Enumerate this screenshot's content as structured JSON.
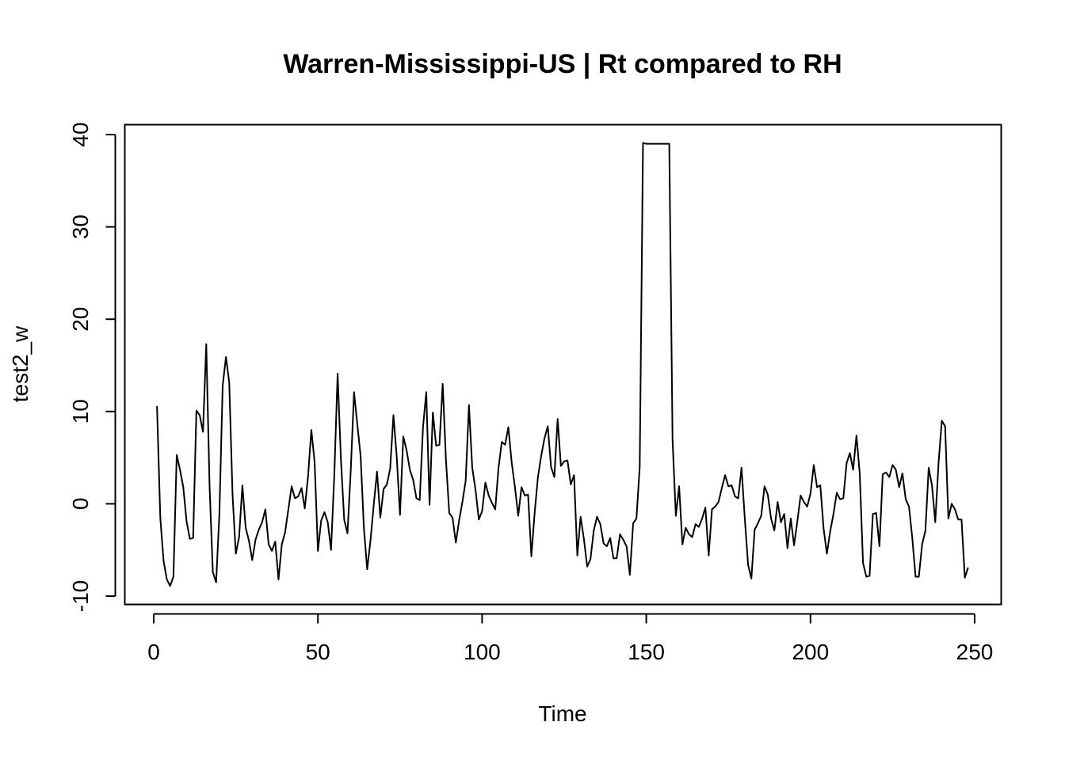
{
  "chart_data": {
    "type": "line",
    "title": "Warren-Mississippi-US | Rt compared to RH",
    "xlabel": "Time",
    "ylabel": "test2_w",
    "xlim": [
      0,
      250
    ],
    "ylim": [
      -10,
      40
    ],
    "x_ticks": [
      0,
      50,
      100,
      150,
      200,
      250
    ],
    "y_ticks": [
      -10,
      0,
      10,
      20,
      30,
      40
    ],
    "x_tick_labels": [
      "0",
      "50",
      "100",
      "150",
      "200",
      "250"
    ],
    "y_tick_labels": [
      "-10",
      "0",
      "10",
      "20",
      "30",
      "40"
    ],
    "grid": false,
    "line_color": "#000000",
    "series": [
      {
        "x_start": 1,
        "values": [
          10.6,
          -1.5,
          -6.2,
          -8.2,
          -8.9,
          -7.9,
          5.3,
          3.7,
          1.8,
          -1.9,
          -3.8,
          -3.7,
          10.1,
          9.6,
          7.8,
          17.3,
          2.0,
          -7.4,
          -8.5,
          -1.1,
          12.8,
          15.9,
          13.1,
          1.0,
          -5.4,
          -3.6,
          2.0,
          -2.6,
          -4.0,
          -6.1,
          -3.9,
          -2.8,
          -2.0,
          -0.6,
          -4.4,
          -5.1,
          -4.1,
          -8.2,
          -4.4,
          -3.1,
          -0.6,
          1.9,
          0.6,
          0.8,
          1.7,
          -0.5,
          3.0,
          8.0,
          4.5,
          -5.1,
          -1.8,
          -0.9,
          -2.0,
          -5.0,
          3.2,
          14.1,
          4.9,
          -1.7,
          -3.2,
          3.6,
          12.1,
          8.6,
          5.2,
          -2.6,
          -7.1,
          -4.0,
          -0.1,
          3.5,
          -1.5,
          1.6,
          2.1,
          3.8,
          9.6,
          5.1,
          -1.2,
          7.3,
          5.8,
          3.7,
          2.6,
          0.6,
          0.4,
          8.3,
          12.1,
          -0.1,
          9.9,
          6.3,
          6.4,
          13.0,
          4.7,
          -1.0,
          -1.5,
          -4.2,
          -1.8,
          0.2,
          2.5,
          10.7,
          3.9,
          1.5,
          -1.7,
          -0.8,
          2.3,
          0.9,
          0.1,
          -0.6,
          3.9,
          6.7,
          6.4,
          8.3,
          4.5,
          1.8,
          -1.3,
          1.8,
          0.9,
          1.0,
          -5.7,
          -1.0,
          2.9,
          5.2,
          7.1,
          8.4,
          4.0,
          2.9,
          9.2,
          4.1,
          4.6,
          4.7,
          2.1,
          3.1,
          -5.6,
          -1.4,
          -3.8,
          -6.8,
          -6.0,
          -2.9,
          -1.4,
          -2.2,
          -4.3,
          -4.6,
          -3.7,
          -5.9,
          -5.9,
          -3.3,
          -3.9,
          -4.6,
          -7.7,
          -2.1,
          -1.6,
          4.0,
          39.1,
          39.0,
          39.0,
          39.0,
          39.0,
          39.0,
          39.0,
          39.0,
          39.0,
          6.9,
          -1.3,
          1.9,
          -4.4,
          -2.6,
          -3.3,
          -3.6,
          -2.2,
          -2.5,
          -1.6,
          -0.4,
          -5.6,
          -0.6,
          -0.3,
          0.2,
          1.7,
          3.1,
          1.9,
          2.0,
          0.8,
          0.6,
          3.9,
          -1.6,
          -6.6,
          -8.1,
          -2.8,
          -2.1,
          -1.3,
          1.9,
          1.0,
          -1.6,
          -2.9,
          0.2,
          -2.0,
          -1.1,
          -4.8,
          -1.6,
          -4.5,
          -1.9,
          0.9,
          0.2,
          -0.3,
          1.1,
          4.2,
          1.8,
          2.0,
          -2.7,
          -5.4,
          -3.0,
          -1.1,
          1.2,
          0.5,
          0.6,
          4.4,
          5.5,
          3.7,
          7.4,
          3.3,
          -6.4,
          -7.9,
          -7.8,
          -1.1,
          -1.0,
          -4.6,
          3.2,
          3.4,
          2.9,
          4.2,
          3.7,
          1.8,
          3.3,
          0.5,
          -0.3,
          -3.7,
          -7.9,
          -7.9,
          -4.4,
          -2.9,
          3.9,
          2.0,
          -2.0,
          4.4,
          9.0,
          8.4,
          -1.6,
          0.0,
          -0.6,
          -1.7,
          -1.7,
          -8.0,
          -6.9
        ]
      }
    ]
  }
}
